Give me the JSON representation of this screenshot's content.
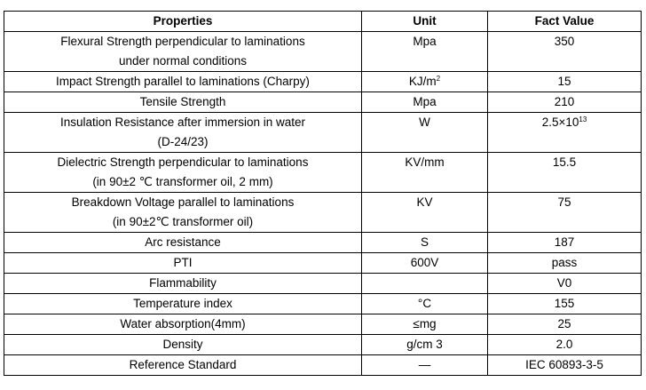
{
  "headers": [
    "Properties",
    "Unit",
    "Fact Value"
  ],
  "rows": [
    {
      "prop": [
        "Flexural Strength perpendicular to laminations",
        "under normal conditions"
      ],
      "unit": "Mpa",
      "unit_sup": "",
      "value": "350",
      "value_sup": ""
    },
    {
      "prop": [
        "Impact Strength parallel to laminations (Charpy)"
      ],
      "unit": "KJ/m",
      "unit_sup": "2",
      "value": "15",
      "value_sup": ""
    },
    {
      "prop": [
        "Tensile Strength"
      ],
      "unit": "Mpa",
      "unit_sup": "",
      "value": "210",
      "value_sup": ""
    },
    {
      "prop": [
        "Insulation Resistance after immersion in water",
        "(D-24/23)"
      ],
      "unit": "W",
      "unit_sup": "",
      "value": "2.5×10",
      "value_sup": "13"
    },
    {
      "prop": [
        "Dielectric Strength perpendicular to laminations",
        "(in 90±2 ℃ transformer oil, 2 mm)"
      ],
      "unit": "KV/mm",
      "unit_sup": "",
      "value": "15.5",
      "value_sup": ""
    },
    {
      "prop": [
        "Breakdown Voltage parallel to laminations",
        "(in 90±2℃ transformer oil)"
      ],
      "unit": "KV",
      "unit_sup": "",
      "value": "75",
      "value_sup": ""
    },
    {
      "prop": [
        "Arc resistance"
      ],
      "unit": "S",
      "unit_sup": "",
      "value": "187",
      "value_sup": ""
    },
    {
      "prop": [
        "PTI"
      ],
      "unit": "600V",
      "unit_sup": "",
      "value": "pass",
      "value_sup": ""
    },
    {
      "prop": [
        "Flammability"
      ],
      "unit": "",
      "unit_sup": "",
      "value": "V0",
      "value_sup": ""
    },
    {
      "prop": [
        "Temperature index"
      ],
      "unit": "°C",
      "unit_sup": "",
      "value": "155",
      "value_sup": ""
    },
    {
      "prop": [
        "Water absorption(4mm)"
      ],
      "unit": "≤mg",
      "unit_sup": "",
      "value": "25",
      "value_sup": ""
    },
    {
      "prop": [
        "Density"
      ],
      "unit": "g/cm 3",
      "unit_sup": "",
      "value": "2.0",
      "value_sup": ""
    },
    {
      "prop": [
        "Reference Standard"
      ],
      "unit": "—",
      "unit_sup": "",
      "value": "IEC 60893-3-5",
      "value_sup": ""
    }
  ]
}
